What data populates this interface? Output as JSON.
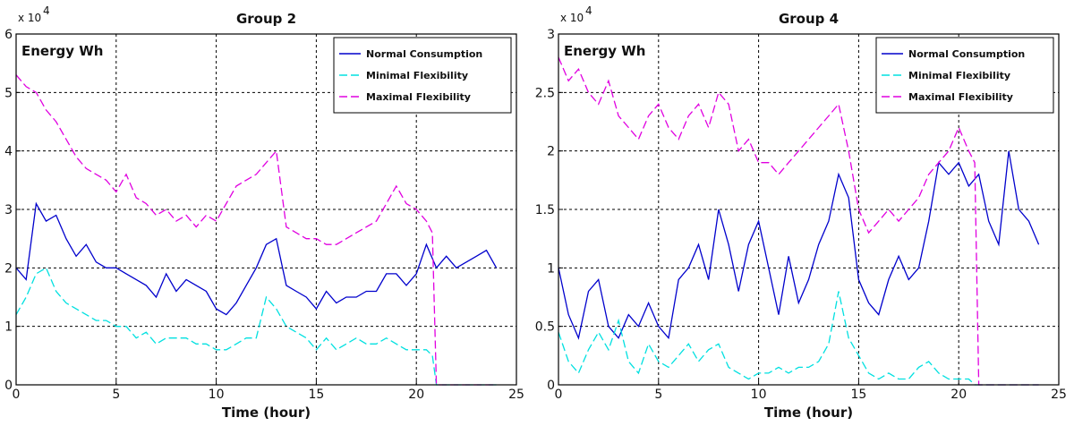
{
  "chart_data": [
    {
      "type": "line",
      "title": "Group 2",
      "xlabel": "Time (hour)",
      "ylabel": "Energy Wh",
      "y_multiplier": "x 10",
      "y_multiplier_exp": "4",
      "xlim": [
        0,
        25
      ],
      "ylim": [
        0,
        6
      ],
      "x_ticks": [
        "0",
        "5",
        "10",
        "15",
        "20",
        "25"
      ],
      "y_ticks": [
        "0",
        "1",
        "2",
        "3",
        "4",
        "5",
        "6"
      ],
      "grid": true,
      "legend_position": "top-right",
      "series": [
        {
          "name": "Normal Consumption",
          "color": "#0000cc",
          "style": "solid",
          "x": [
            0,
            0.5,
            1,
            1.5,
            2,
            2.5,
            3,
            3.5,
            4,
            4.5,
            5,
            5.5,
            6,
            6.5,
            7,
            7.5,
            8,
            8.5,
            9,
            9.5,
            10,
            10.5,
            11,
            11.5,
            12,
            12.5,
            13,
            13.5,
            14,
            14.5,
            15,
            15.5,
            16,
            16.5,
            17,
            17.5,
            18,
            18.5,
            19,
            19.5,
            20,
            20.5,
            21,
            21.5,
            22,
            22.5,
            23,
            23.5,
            24
          ],
          "values": [
            2.0,
            1.8,
            3.1,
            2.8,
            2.9,
            2.5,
            2.2,
            2.4,
            2.1,
            2.0,
            2.0,
            1.9,
            1.8,
            1.7,
            1.5,
            1.9,
            1.6,
            1.8,
            1.7,
            1.6,
            1.3,
            1.2,
            1.4,
            1.7,
            2.0,
            2.4,
            2.5,
            1.7,
            1.6,
            1.5,
            1.3,
            1.6,
            1.4,
            1.5,
            1.5,
            1.6,
            1.6,
            1.9,
            1.9,
            1.7,
            1.9,
            2.4,
            2.0,
            2.2,
            2.0,
            2.1,
            2.2,
            2.3,
            2.0
          ]
        },
        {
          "name": "Minimal Flexibility",
          "color": "#00e0e0",
          "style": "dashed",
          "x": [
            0,
            0.5,
            1,
            1.5,
            2,
            2.5,
            3,
            3.5,
            4,
            4.5,
            5,
            5.5,
            6,
            6.5,
            7,
            7.5,
            8,
            8.5,
            9,
            9.5,
            10,
            10.5,
            11,
            11.5,
            12,
            12.5,
            13,
            13.5,
            14,
            14.5,
            15,
            15.5,
            16,
            16.5,
            17,
            17.5,
            18,
            18.5,
            19,
            19.5,
            20,
            20.5,
            20.8,
            21,
            22,
            23,
            24
          ],
          "values": [
            1.2,
            1.5,
            1.9,
            2.0,
            1.6,
            1.4,
            1.3,
            1.2,
            1.1,
            1.1,
            1.0,
            1.0,
            0.8,
            0.9,
            0.7,
            0.8,
            0.8,
            0.8,
            0.7,
            0.7,
            0.6,
            0.6,
            0.7,
            0.8,
            0.8,
            1.5,
            1.3,
            1.0,
            0.9,
            0.8,
            0.6,
            0.8,
            0.6,
            0.7,
            0.8,
            0.7,
            0.7,
            0.8,
            0.7,
            0.6,
            0.6,
            0.6,
            0.5,
            0.0,
            0.0,
            0.0,
            0.0
          ]
        },
        {
          "name": "Maximal Flexibility",
          "color": "#e000e0",
          "style": "dashed",
          "x": [
            0,
            0.5,
            1,
            1.5,
            2,
            2.5,
            3,
            3.5,
            4,
            4.5,
            5,
            5.5,
            6,
            6.5,
            7,
            7.5,
            8,
            8.5,
            9,
            9.5,
            10,
            10.5,
            11,
            11.5,
            12,
            12.5,
            13,
            13.5,
            14,
            14.5,
            15,
            15.5,
            16,
            16.5,
            17,
            17.5,
            18,
            18.5,
            19,
            19.5,
            20,
            20.5,
            20.8,
            21,
            22,
            23,
            24
          ],
          "values": [
            5.3,
            5.1,
            5.0,
            4.7,
            4.5,
            4.2,
            3.9,
            3.7,
            3.6,
            3.5,
            3.3,
            3.6,
            3.2,
            3.1,
            2.9,
            3.0,
            2.8,
            2.9,
            2.7,
            2.9,
            2.8,
            3.1,
            3.4,
            3.5,
            3.6,
            3.8,
            4.0,
            2.7,
            2.6,
            2.5,
            2.5,
            2.4,
            2.4,
            2.5,
            2.6,
            2.7,
            2.8,
            3.1,
            3.4,
            3.1,
            3.0,
            2.8,
            2.6,
            0.0,
            0.0,
            0.0,
            0.0
          ]
        }
      ]
    },
    {
      "type": "line",
      "title": "Group 4",
      "xlabel": "Time (hour)",
      "ylabel": "Energy Wh",
      "y_multiplier": "x 10",
      "y_multiplier_exp": "4",
      "xlim": [
        0,
        25
      ],
      "ylim": [
        0,
        3
      ],
      "x_ticks": [
        "0",
        "5",
        "10",
        "15",
        "20",
        "25"
      ],
      "y_ticks": [
        "0",
        "0.5",
        "1",
        "1.5",
        "2",
        "2.5",
        "3"
      ],
      "grid": true,
      "legend_position": "top-right",
      "series": [
        {
          "name": "Normal Consumption",
          "color": "#0000cc",
          "style": "solid",
          "x": [
            0,
            0.5,
            1,
            1.5,
            2,
            2.5,
            3,
            3.5,
            4,
            4.5,
            5,
            5.5,
            6,
            6.5,
            7,
            7.5,
            8,
            8.5,
            9,
            9.5,
            10,
            10.5,
            11,
            11.5,
            12,
            12.5,
            13,
            13.5,
            14,
            14.5,
            15,
            15.5,
            16,
            16.5,
            17,
            17.5,
            18,
            18.5,
            19,
            19.5,
            20,
            20.5,
            21,
            21.5,
            22,
            22.5,
            23,
            23.5,
            24
          ],
          "values": [
            1.0,
            0.6,
            0.4,
            0.8,
            0.9,
            0.5,
            0.4,
            0.6,
            0.5,
            0.7,
            0.5,
            0.4,
            0.9,
            1.0,
            1.2,
            0.9,
            1.5,
            1.2,
            0.8,
            1.2,
            1.4,
            1.0,
            0.6,
            1.1,
            0.7,
            0.9,
            1.2,
            1.4,
            1.8,
            1.6,
            0.9,
            0.7,
            0.6,
            0.9,
            1.1,
            0.9,
            1.0,
            1.4,
            1.9,
            1.8,
            1.9,
            1.7,
            1.8,
            1.4,
            1.2,
            2.0,
            1.5,
            1.4,
            1.2
          ]
        },
        {
          "name": "Minimal Flexibility",
          "color": "#00e0e0",
          "style": "dashed",
          "x": [
            0,
            0.5,
            1,
            1.5,
            2,
            2.5,
            3,
            3.5,
            4,
            4.5,
            5,
            5.5,
            6,
            6.5,
            7,
            7.5,
            8,
            8.5,
            9,
            9.5,
            10,
            10.5,
            11,
            11.5,
            12,
            12.5,
            13,
            13.5,
            14,
            14.5,
            15,
            15.5,
            16,
            16.5,
            17,
            17.5,
            18,
            18.5,
            19,
            19.5,
            20,
            20.5,
            20.8,
            21,
            22,
            23,
            24
          ],
          "values": [
            0.45,
            0.2,
            0.1,
            0.3,
            0.45,
            0.3,
            0.55,
            0.2,
            0.1,
            0.35,
            0.2,
            0.15,
            0.25,
            0.35,
            0.2,
            0.3,
            0.35,
            0.15,
            0.1,
            0.05,
            0.1,
            0.1,
            0.15,
            0.1,
            0.15,
            0.15,
            0.2,
            0.35,
            0.8,
            0.4,
            0.25,
            0.1,
            0.05,
            0.1,
            0.05,
            0.05,
            0.15,
            0.2,
            0.1,
            0.05,
            0.05,
            0.05,
            0.0,
            0.0,
            0.0,
            0.0,
            0.0
          ]
        },
        {
          "name": "Maximal Flexibility",
          "color": "#e000e0",
          "style": "dashed",
          "x": [
            0,
            0.5,
            1,
            1.5,
            2,
            2.5,
            3,
            3.5,
            4,
            4.5,
            5,
            5.5,
            6,
            6.5,
            7,
            7.5,
            8,
            8.5,
            9,
            9.5,
            10,
            10.5,
            11,
            11.5,
            12,
            12.5,
            13,
            13.5,
            14,
            14.5,
            15,
            15.5,
            16,
            16.5,
            17,
            17.5,
            18,
            18.5,
            19,
            19.5,
            20,
            20.5,
            20.8,
            21,
            22,
            23,
            24
          ],
          "values": [
            2.8,
            2.6,
            2.7,
            2.5,
            2.4,
            2.6,
            2.3,
            2.2,
            2.1,
            2.3,
            2.4,
            2.2,
            2.1,
            2.3,
            2.4,
            2.2,
            2.5,
            2.4,
            2.0,
            2.1,
            1.9,
            1.9,
            1.8,
            1.9,
            2.0,
            2.1,
            2.2,
            2.3,
            2.4,
            2.0,
            1.5,
            1.3,
            1.4,
            1.5,
            1.4,
            1.5,
            1.6,
            1.8,
            1.9,
            2.0,
            2.2,
            2.0,
            1.9,
            0.0,
            0.0,
            0.0,
            0.0
          ]
        }
      ]
    }
  ]
}
